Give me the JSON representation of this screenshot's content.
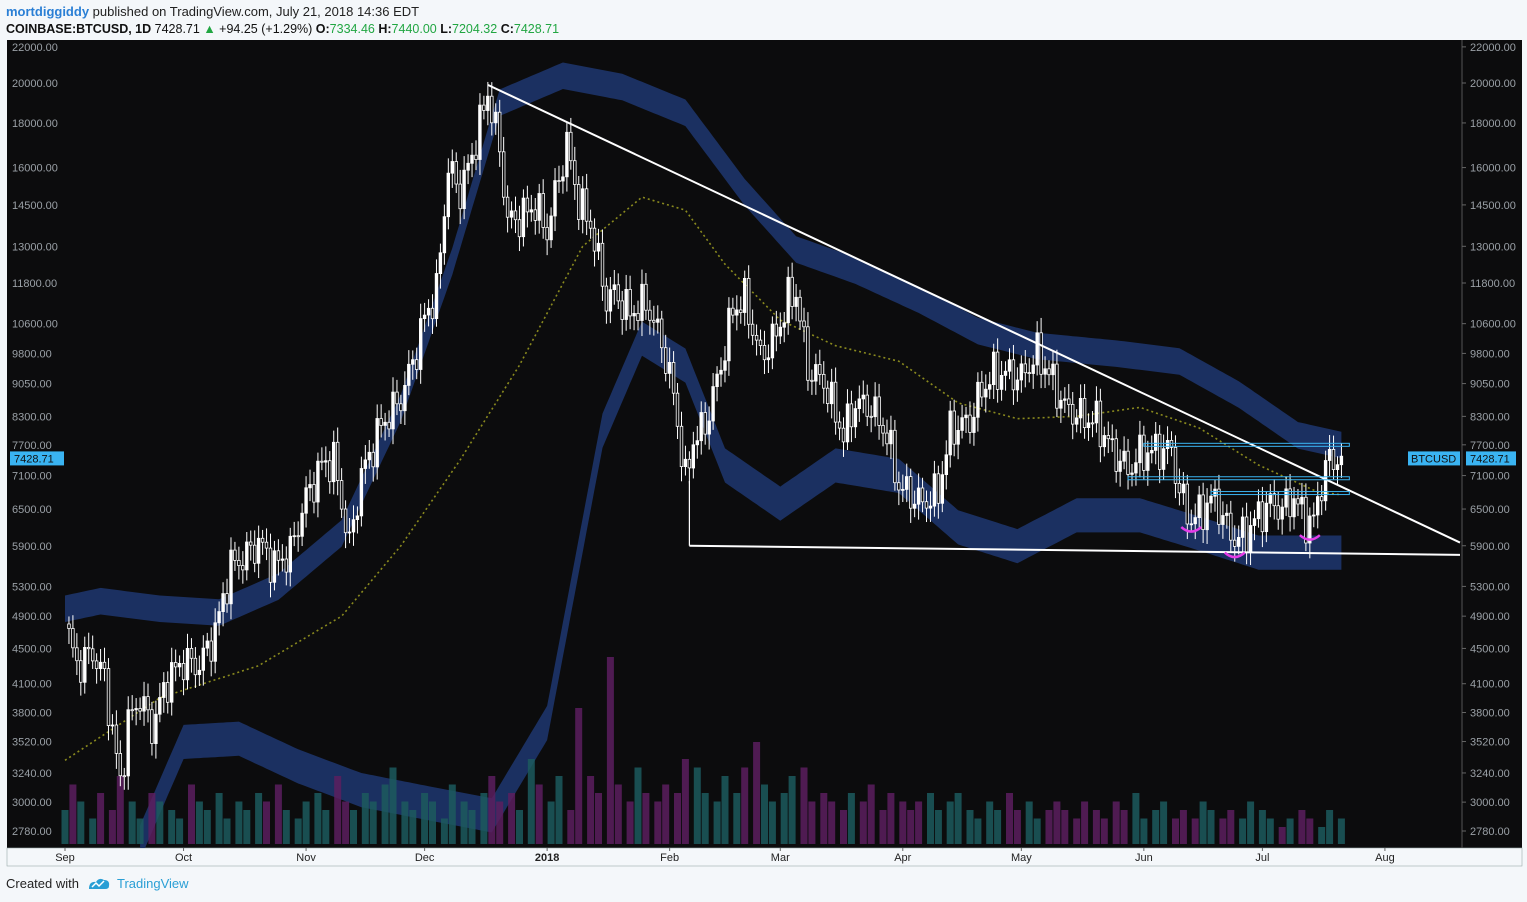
{
  "header": {
    "user": "mortdiggiddy",
    "published_text": "published on TradingView.com, July 21, 2018 14:36 EDT",
    "symbol": "COINBASE:BTCUSD, 1D",
    "last": "7428.71",
    "change": "+94.25 (+1.29%)",
    "o_label": "O:",
    "o_value": "7334.46",
    "h_label": "H:",
    "h_value": "7440.00",
    "l_label": "L:",
    "l_value": "7204.32",
    "c_label": "C:",
    "c_value": "7428.71"
  },
  "footer": {
    "created_with": "Created with",
    "brand": "TradingView"
  },
  "colors": {
    "background": "#0c0c0d",
    "candle": "#ffffff",
    "band": "#1c3366",
    "ma": "#8a8a1e",
    "accent": "#3ab4f2",
    "vol_up": "#1c5b5e",
    "vol_down": "#5c1f5f",
    "arc": "#e53de8"
  },
  "chart_data": {
    "type": "candlestick",
    "symbol": "COINBASE:BTCUSD",
    "interval": "1D",
    "price_scale": "log",
    "ylim": [
      2700,
      22000
    ],
    "y_ticks": [
      22000,
      20000,
      18000,
      16000,
      14500,
      13000,
      11800,
      10600,
      9800,
      9050,
      8300,
      7700,
      7100,
      6500,
      5900,
      5300,
      4900,
      4500,
      4100,
      3800,
      3520,
      3240,
      3000,
      2780
    ],
    "y_tick_labels": [
      "22000.00",
      "20000.00",
      "18000.00",
      "16000.00",
      "14500.00",
      "13000.00",
      "11800.00",
      "10600.00",
      "9800.00",
      "9050.00",
      "8300.00",
      "7700.00",
      "7100.00",
      "6500.00",
      "5900.00",
      "5300.00",
      "4900.00",
      "4500.00",
      "4100.00",
      "3800.00",
      "3520.00",
      "3240.00",
      "3000.00",
      "2780.00"
    ],
    "x_range": [
      "2017-09-01",
      "2018-08-20"
    ],
    "x_ticks": [
      {
        "label": "Sep",
        "date": "2017-09-01"
      },
      {
        "label": "Oct",
        "date": "2017-10-01"
      },
      {
        "label": "Nov",
        "date": "2017-11-01"
      },
      {
        "label": "Dec",
        "date": "2017-12-01"
      },
      {
        "label": "2018",
        "date": "2018-01-01"
      },
      {
        "label": "Feb",
        "date": "2018-02-01"
      },
      {
        "label": "Mar",
        "date": "2018-03-01"
      },
      {
        "label": "Apr",
        "date": "2018-04-01"
      },
      {
        "label": "May",
        "date": "2018-05-01"
      },
      {
        "label": "Jun",
        "date": "2018-06-01"
      },
      {
        "label": "Jul",
        "date": "2018-07-01"
      },
      {
        "label": "Aug",
        "date": "2018-08-01"
      }
    ],
    "price_path": [
      [
        "2017-09-01",
        4800
      ],
      [
        "2017-09-04",
        4300
      ],
      [
        "2017-09-08",
        4450
      ],
      [
        "2017-09-11",
        4150
      ],
      [
        "2017-09-15",
        3150
      ],
      [
        "2017-09-17",
        3700
      ],
      [
        "2017-09-20",
        3950
      ],
      [
        "2017-09-23",
        3650
      ],
      [
        "2017-09-27",
        4150
      ],
      [
        "2017-10-01",
        4350
      ],
      [
        "2017-10-05",
        4300
      ],
      [
        "2017-10-09",
        4700
      ],
      [
        "2017-10-13",
        5600
      ],
      [
        "2017-10-16",
        5700
      ],
      [
        "2017-10-20",
        5950
      ],
      [
        "2017-10-24",
        5600
      ],
      [
        "2017-10-28",
        5800
      ],
      [
        "2017-11-01",
        6700
      ],
      [
        "2017-11-05",
        7300
      ],
      [
        "2017-11-08",
        7400
      ],
      [
        "2017-11-12",
        5900
      ],
      [
        "2017-11-15",
        7100
      ],
      [
        "2017-11-20",
        8100
      ],
      [
        "2017-11-25",
        8700
      ],
      [
        "2017-11-29",
        9900
      ],
      [
        "2017-12-01",
        10800
      ],
      [
        "2017-12-04",
        11500
      ],
      [
        "2017-12-07",
        16000
      ],
      [
        "2017-12-10",
        15000
      ],
      [
        "2017-12-13",
        16500
      ],
      [
        "2017-12-17",
        19500
      ],
      [
        "2017-12-20",
        16800
      ],
      [
        "2017-12-22",
        13900
      ],
      [
        "2017-12-25",
        14000
      ],
      [
        "2017-12-29",
        14500
      ],
      [
        "2018-01-01",
        13500
      ],
      [
        "2018-01-03",
        14900
      ],
      [
        "2018-01-06",
        17000
      ],
      [
        "2018-01-09",
        14600
      ],
      [
        "2018-01-12",
        13800
      ],
      [
        "2018-01-16",
        11300
      ],
      [
        "2018-01-18",
        11500
      ],
      [
        "2018-01-22",
        10900
      ],
      [
        "2018-01-26",
        11200
      ],
      [
        "2018-01-30",
        10100
      ],
      [
        "2018-02-02",
        8800
      ],
      [
        "2018-02-05",
        7000
      ],
      [
        "2018-02-07",
        7800
      ],
      [
        "2018-02-10",
        8100
      ],
      [
        "2018-02-14",
        9500
      ],
      [
        "2018-02-17",
        11000
      ],
      [
        "2018-02-20",
        11300
      ],
      [
        "2018-02-24",
        9700
      ],
      [
        "2018-02-28",
        10300
      ],
      [
        "2018-03-03",
        11300
      ],
      [
        "2018-03-05",
        11500
      ],
      [
        "2018-03-08",
        9400
      ],
      [
        "2018-03-12",
        9100
      ],
      [
        "2018-03-17",
        7900
      ],
      [
        "2018-03-20",
        8600
      ],
      [
        "2018-03-24",
        8500
      ],
      [
        "2018-03-28",
        7900
      ],
      [
        "2018-03-31",
        6900
      ],
      [
        "2018-04-06",
        6600
      ],
      [
        "2018-04-10",
        6800
      ],
      [
        "2018-04-13",
        8000
      ],
      [
        "2018-04-18",
        8200
      ],
      [
        "2018-04-21",
        8900
      ],
      [
        "2018-04-24",
        9300
      ],
      [
        "2018-04-28",
        9300
      ],
      [
        "2018-05-01",
        9200
      ],
      [
        "2018-05-05",
        9800
      ],
      [
        "2018-05-08",
        9300
      ],
      [
        "2018-05-12",
        8500
      ],
      [
        "2018-05-16",
        8300
      ],
      [
        "2018-05-20",
        8200
      ],
      [
        "2018-05-24",
        7600
      ],
      [
        "2018-05-28",
        7200
      ],
      [
        "2018-05-31",
        7500
      ],
      [
        "2018-06-04",
        7600
      ],
      [
        "2018-06-08",
        7600
      ],
      [
        "2018-06-10",
        6800
      ],
      [
        "2018-06-13",
        6300
      ],
      [
        "2018-06-16",
        6500
      ],
      [
        "2018-06-19",
        6700
      ],
      [
        "2018-06-22",
        6200
      ],
      [
        "2018-06-24",
        6000
      ],
      [
        "2018-06-27",
        6100
      ],
      [
        "2018-06-30",
        6400
      ],
      [
        "2018-07-03",
        6600
      ],
      [
        "2018-07-06",
        6500
      ],
      [
        "2018-07-09",
        6700
      ],
      [
        "2018-07-12",
        6300
      ],
      [
        "2018-07-14",
        6300
      ],
      [
        "2018-07-17",
        7300
      ],
      [
        "2018-07-19",
        7400
      ],
      [
        "2018-07-21",
        7428.71
      ]
    ],
    "moving_average_path": [
      [
        "2017-09-01",
        3350
      ],
      [
        "2017-09-25",
        3950
      ],
      [
        "2017-10-20",
        4300
      ],
      [
        "2017-11-10",
        4900
      ],
      [
        "2017-11-25",
        5900
      ],
      [
        "2017-12-10",
        7400
      ],
      [
        "2017-12-25",
        9500
      ],
      [
        "2018-01-10",
        13000
      ],
      [
        "2018-01-25",
        14800
      ],
      [
        "2018-02-05",
        14300
      ],
      [
        "2018-02-15",
        12400
      ],
      [
        "2018-03-01",
        10700
      ],
      [
        "2018-03-15",
        10000
      ],
      [
        "2018-03-31",
        9600
      ],
      [
        "2018-04-15",
        8600
      ],
      [
        "2018-04-30",
        8250
      ],
      [
        "2018-05-15",
        8300
      ],
      [
        "2018-05-31",
        8500
      ],
      [
        "2018-06-15",
        8050
      ],
      [
        "2018-06-30",
        7300
      ],
      [
        "2018-07-15",
        6800
      ],
      [
        "2018-07-21",
        6750
      ]
    ],
    "band_upper": [
      [
        "2017-09-01",
        5000
      ],
      [
        "2017-09-10",
        5100
      ],
      [
        "2017-09-25",
        5000
      ],
      [
        "2017-10-10",
        4950
      ],
      [
        "2017-10-25",
        5300
      ],
      [
        "2017-11-10",
        6100
      ],
      [
        "2017-11-25",
        8500
      ],
      [
        "2017-12-08",
        12500
      ],
      [
        "2017-12-20",
        19000
      ],
      [
        "2018-01-05",
        20400
      ],
      [
        "2018-01-20",
        19800
      ],
      [
        "2018-02-05",
        18500
      ],
      [
        "2018-02-20",
        15000
      ],
      [
        "2018-03-05",
        12900
      ],
      [
        "2018-03-20",
        12200
      ],
      [
        "2018-04-05",
        11300
      ],
      [
        "2018-04-20",
        10400
      ],
      [
        "2018-05-05",
        10000
      ],
      [
        "2018-05-25",
        9800
      ],
      [
        "2018-06-10",
        9600
      ],
      [
        "2018-06-25",
        8800
      ],
      [
        "2018-07-10",
        7900
      ],
      [
        "2018-07-21",
        7700
      ]
    ],
    "band_lower": [
      [
        "2017-09-20",
        2700
      ],
      [
        "2017-10-01",
        3520
      ],
      [
        "2017-10-15",
        3550
      ],
      [
        "2017-10-30",
        3300
      ],
      [
        "2017-11-15",
        3100
      ],
      [
        "2017-12-01",
        3000
      ],
      [
        "2017-12-18",
        2900
      ],
      [
        "2018-01-01",
        3700
      ],
      [
        "2018-01-15",
        8000
      ],
      [
        "2018-01-25",
        10200
      ],
      [
        "2018-02-05",
        9500
      ],
      [
        "2018-02-15",
        7300
      ],
      [
        "2018-03-01",
        6600
      ],
      [
        "2018-03-15",
        7300
      ],
      [
        "2018-03-31",
        7100
      ],
      [
        "2018-04-15",
        6200
      ],
      [
        "2018-04-30",
        5900
      ],
      [
        "2018-05-15",
        6400
      ],
      [
        "2018-05-31",
        6400
      ],
      [
        "2018-06-15",
        6100
      ],
      [
        "2018-06-30",
        5800
      ],
      [
        "2018-07-21",
        5800
      ]
    ],
    "trendlines": [
      {
        "name": "descending",
        "from": [
          "2017-12-17",
          19900
        ],
        "to": [
          "2018-08-20",
          5950
        ]
      },
      {
        "name": "support",
        "from": [
          "2018-02-06",
          5900
        ],
        "to": [
          "2018-08-20",
          5760
        ]
      }
    ],
    "horizontal_levels": [
      {
        "price": 7700,
        "from": "2018-06-01",
        "to": "2018-07-23"
      },
      {
        "price": 7050,
        "from": "2018-05-28",
        "to": "2018-07-23"
      },
      {
        "price": 6780,
        "from": "2018-06-18",
        "to": "2018-07-23"
      }
    ],
    "arcs": [
      {
        "date": "2018-06-13",
        "price": 6150
      },
      {
        "date": "2018-06-24",
        "price": 5750
      },
      {
        "date": "2018-07-13",
        "price": 6020
      }
    ],
    "price_label": {
      "value": "7428.71",
      "symbol_tag": "BTCUSD"
    },
    "volume_relative": [
      0.4,
      0.7,
      0.5,
      0.3,
      0.6,
      0.4,
      0.8,
      0.5,
      0.3,
      0.6,
      0.5,
      0.4,
      0.3,
      0.7,
      0.5,
      0.4,
      0.6,
      0.3,
      0.5,
      0.4,
      0.6,
      0.5,
      0.7,
      0.4,
      0.3,
      0.5,
      0.6,
      0.4,
      0.8,
      0.5,
      0.4,
      0.6,
      0.5,
      0.7,
      0.9,
      0.5,
      0.4,
      0.6,
      0.5,
      0.3,
      0.7,
      0.5,
      0.4,
      0.6,
      0.8,
      0.5,
      0.6,
      0.4,
      1.0,
      0.7,
      0.5,
      0.8,
      0.4,
      1.6,
      0.8,
      0.6,
      2.2,
      0.7,
      0.5,
      0.9,
      0.6,
      0.5,
      0.7,
      0.6,
      1.0,
      0.9,
      0.6,
      0.5,
      0.8,
      0.6,
      0.9,
      1.2,
      0.7,
      0.5,
      0.6,
      0.8,
      0.9,
      0.5,
      0.6,
      0.5,
      0.4,
      0.6,
      0.5,
      0.7,
      0.4,
      0.6,
      0.5,
      0.4,
      0.5,
      0.6,
      0.4,
      0.5,
      0.6,
      0.4,
      0.3,
      0.5,
      0.4,
      0.6,
      0.4,
      0.5,
      0.3,
      0.4,
      0.5,
      0.4,
      0.3,
      0.5,
      0.4,
      0.3,
      0.5,
      0.4,
      0.6,
      0.3,
      0.4,
      0.5,
      0.3,
      0.4,
      0.3,
      0.5,
      0.4,
      0.3,
      0.4,
      0.3,
      0.5,
      0.4,
      0.3,
      0.2,
      0.3,
      0.4,
      0.3,
      0.2,
      0.4,
      0.3
    ]
  }
}
